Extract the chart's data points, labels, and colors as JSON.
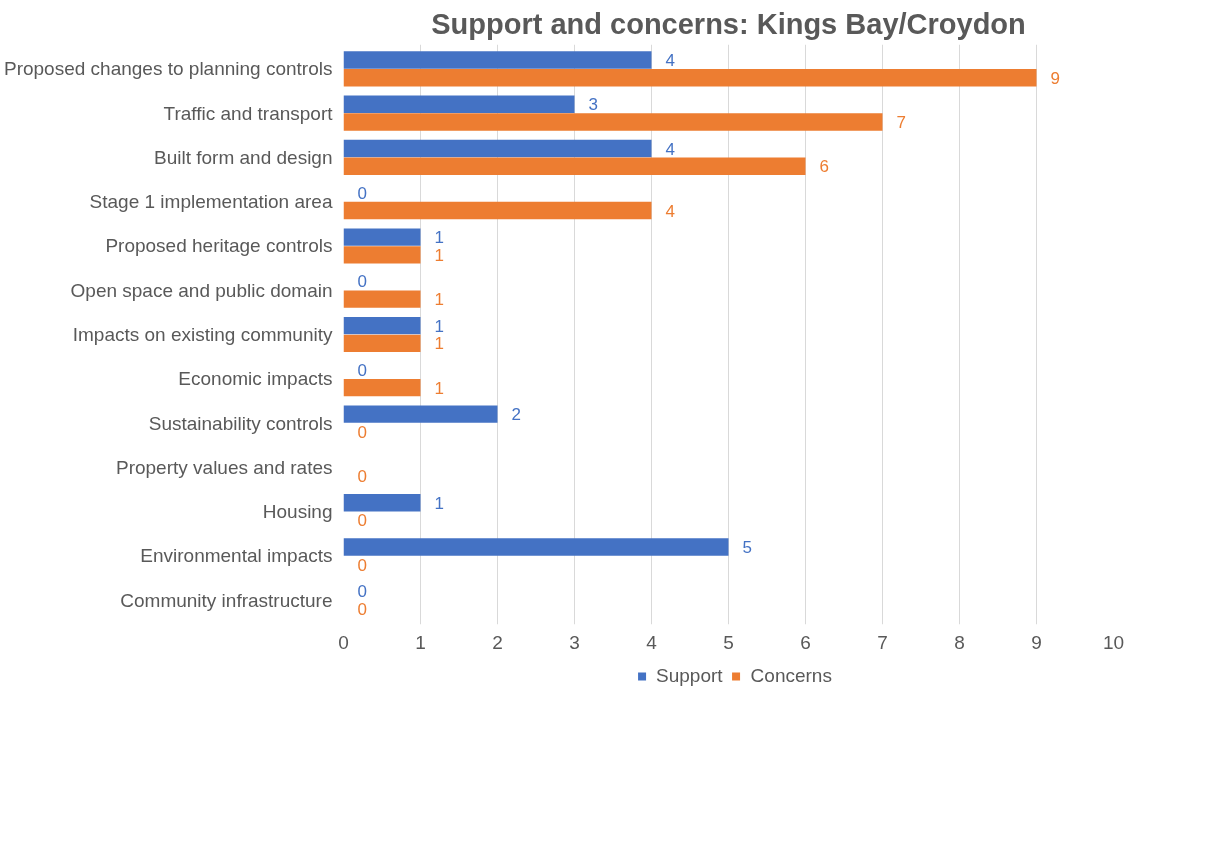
{
  "chart_data": {
    "type": "bar",
    "orientation": "horizontal",
    "title": "Support and concerns: Kings Bay/Croydon",
    "categories": [
      "Proposed changes to planning controls",
      "Traffic and transport",
      "Built form and design",
      "Stage 1 implementation area",
      "Proposed heritage controls",
      "Open space and public domain",
      "Impacts on existing community",
      "Economic impacts",
      "Sustainability controls",
      "Property values and rates",
      "Housing",
      "Environmental impacts",
      "Community infrastructure"
    ],
    "series": [
      {
        "name": "Support",
        "color": "#4472c4",
        "values": [
          4,
          3,
          4,
          0,
          1,
          0,
          1,
          0,
          2,
          null,
          1,
          5,
          0
        ],
        "value_labels": [
          "4",
          "3",
          "4",
          "0",
          "1",
          "0",
          "1",
          "0",
          "2",
          null,
          "1",
          "5",
          "0"
        ]
      },
      {
        "name": "Concerns",
        "color": "#ed7d31",
        "values": [
          9,
          7,
          6,
          4,
          1,
          1,
          1,
          1,
          0,
          0,
          0,
          0,
          0
        ],
        "value_labels": [
          "9",
          "7",
          "6",
          "4",
          "1",
          "1",
          "1",
          "1",
          "0",
          "0",
          "0",
          "0",
          "0"
        ]
      }
    ],
    "xlim": [
      0,
      10
    ],
    "xticks": [
      0,
      1,
      2,
      3,
      4,
      5,
      6,
      7,
      8,
      9,
      10
    ],
    "grid": "x",
    "legend": "bottom"
  }
}
